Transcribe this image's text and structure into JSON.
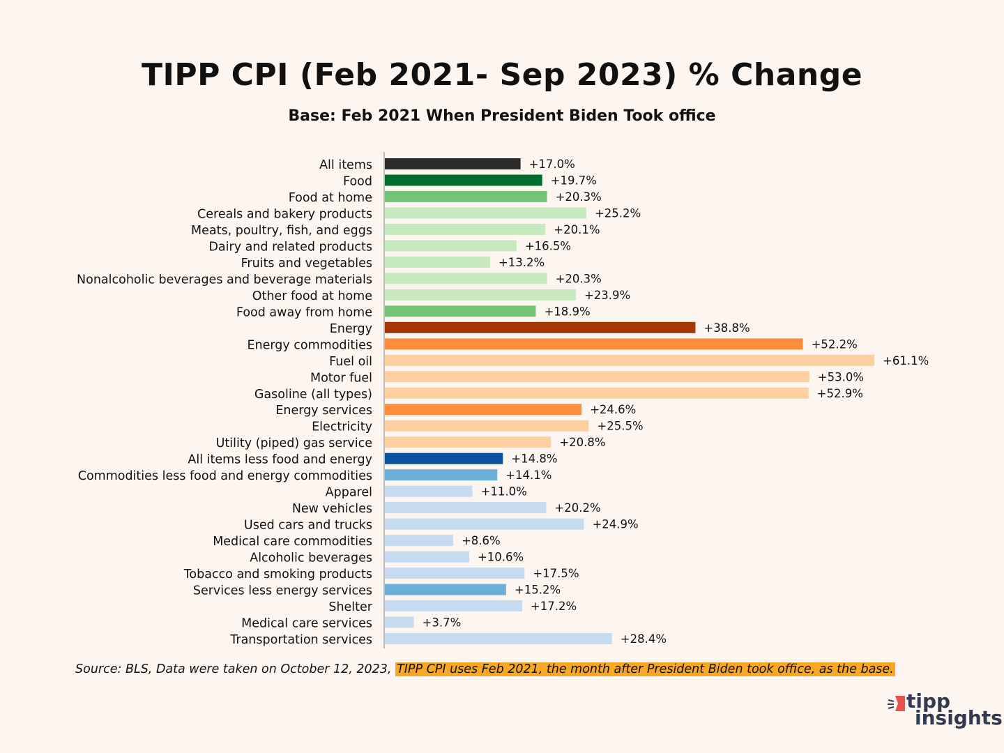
{
  "chart_data": {
    "type": "bar",
    "orientation": "horizontal",
    "title": "TIPP CPI (Feb 2021- Sep 2023) % Change",
    "subtitle": "Base: Feb 2021 When President Biden Took office",
    "xlabel": "",
    "ylabel": "",
    "xlim": [
      0,
      61.1
    ],
    "grid": false,
    "categories": [
      "All items",
      "Food",
      "Food at home",
      "Cereals and bakery products",
      "Meats, poultry, fish, and eggs",
      "Dairy and related products",
      "Fruits and vegetables",
      "Nonalcoholic beverages and beverage materials",
      "Other food at home",
      "Food away from home",
      "Energy",
      "Energy commodities",
      "Fuel oil",
      "Motor fuel",
      "Gasoline (all types)",
      "Energy services",
      "Electricity",
      "Utility (piped) gas service",
      "All items less food and energy",
      "Commodities less food and energy commodities",
      "Apparel",
      "New vehicles",
      "Used cars and trucks",
      "Medical care commodities",
      "Alcoholic beverages",
      "Tobacco and smoking products",
      "Services less energy services",
      "Shelter",
      "Medical care services",
      "Transportation services"
    ],
    "values": [
      17.0,
      19.7,
      20.3,
      25.2,
      20.1,
      16.5,
      13.2,
      20.3,
      23.9,
      18.9,
      38.8,
      52.2,
      61.1,
      53.0,
      52.9,
      24.6,
      25.5,
      20.8,
      14.8,
      14.1,
      11.0,
      20.2,
      24.9,
      8.6,
      10.6,
      17.5,
      15.2,
      17.2,
      3.7,
      28.4
    ],
    "data_labels": [
      "+17.0%",
      "+19.7%",
      "+20.3%",
      "+25.2%",
      "+20.1%",
      "+16.5%",
      "+13.2%",
      "+20.3%",
      "+23.9%",
      "+18.9%",
      "+38.8%",
      "+52.2%",
      "+61.1%",
      "+53.0%",
      "+52.9%",
      "+24.6%",
      "+25.5%",
      "+20.8%",
      "+14.8%",
      "+14.1%",
      "+11.0%",
      "+20.2%",
      "+24.9%",
      "+8.6%",
      "+10.6%",
      "+17.5%",
      "+15.2%",
      "+17.2%",
      "+3.7%",
      "+28.4%"
    ],
    "colors": [
      "#2b2b2b",
      "#006d2c",
      "#74c476",
      "#c7e9c0",
      "#c7e9c0",
      "#c7e9c0",
      "#c7e9c0",
      "#c7e9c0",
      "#c7e9c0",
      "#74c476",
      "#a63603",
      "#fd8d3c",
      "#fdd0a2",
      "#fdd0a2",
      "#fdd0a2",
      "#fd8d3c",
      "#fdd0a2",
      "#fdd0a2",
      "#08519c",
      "#6baed6",
      "#c6dbef",
      "#c6dbef",
      "#c6dbef",
      "#c6dbef",
      "#c6dbef",
      "#c6dbef",
      "#6baed6",
      "#c6dbef",
      "#c6dbef",
      "#c6dbef"
    ]
  },
  "footer": {
    "source": "Source:  BLS, Data were taken on October 12, 2023,",
    "note": "TIPP CPI uses Feb 2021, the month after President Biden took office, as the base."
  },
  "logo": {
    "line1": "tipp",
    "line2": "insights"
  }
}
